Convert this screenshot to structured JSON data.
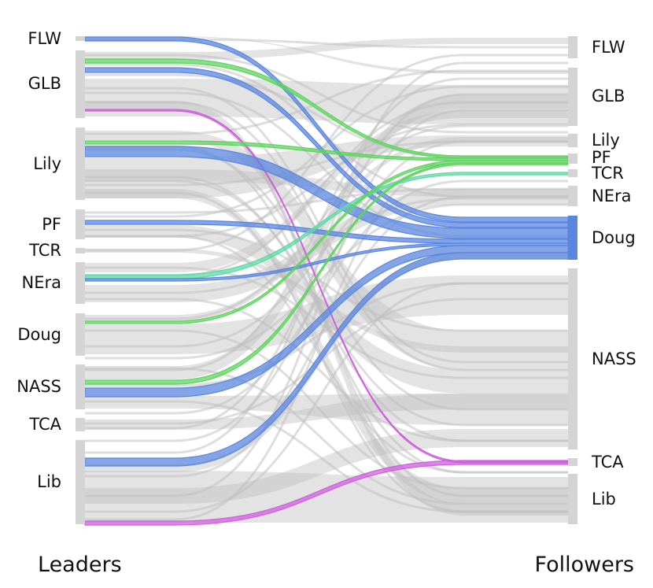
{
  "columns": {
    "left_title": "Leaders",
    "right_title": "Followers"
  },
  "colors": {
    "node": "#d4d4d4",
    "gray_link": "#bdbdbd",
    "blue": "#5b86e0",
    "green": "#5fd45f",
    "teal": "#5fd9a5",
    "magenta": "#cf5fdf",
    "doug_node": "#5b86e0"
  },
  "leaders": [
    {
      "id": "FLW",
      "label": "FLW"
    },
    {
      "id": "GLB",
      "label": "GLB"
    },
    {
      "id": "Lily",
      "label": "Lily"
    },
    {
      "id": "PF",
      "label": "PF"
    },
    {
      "id": "TCR",
      "label": "TCR"
    },
    {
      "id": "NEra",
      "label": "NEra"
    },
    {
      "id": "Doug",
      "label": "Doug"
    },
    {
      "id": "NASS",
      "label": "NASS"
    },
    {
      "id": "TCA",
      "label": "TCA"
    },
    {
      "id": "Lib",
      "label": "Lib"
    }
  ],
  "followers": [
    {
      "id": "FLW",
      "label": "FLW"
    },
    {
      "id": "GLB",
      "label": "GLB"
    },
    {
      "id": "Lily",
      "label": "Lily"
    },
    {
      "id": "PF",
      "label": "PF"
    },
    {
      "id": "TCR",
      "label": "TCR"
    },
    {
      "id": "NEra",
      "label": "NEra"
    },
    {
      "id": "Doug",
      "label": "Doug"
    },
    {
      "id": "NASS",
      "label": "NASS"
    },
    {
      "id": "TCA",
      "label": "TCA"
    },
    {
      "id": "Lib",
      "label": "Lib"
    }
  ],
  "highlight_links": [
    {
      "from": "FLW",
      "to": "Doug",
      "color": "blue"
    },
    {
      "from": "GLB",
      "to": "PF",
      "color": "green"
    },
    {
      "from": "GLB",
      "to": "Doug",
      "color": "blue"
    },
    {
      "from": "GLB",
      "to": "TCA",
      "color": "magenta"
    },
    {
      "from": "Lily",
      "to": "PF",
      "color": "green"
    },
    {
      "from": "Lily",
      "to": "Doug",
      "color": "blue"
    },
    {
      "from": "PF",
      "to": "Doug",
      "color": "blue"
    },
    {
      "from": "NEra",
      "to": "TCR",
      "color": "teal"
    },
    {
      "from": "NEra",
      "to": "Doug",
      "color": "blue"
    },
    {
      "from": "Doug",
      "to": "PF",
      "color": "green"
    },
    {
      "from": "NASS",
      "to": "PF",
      "color": "green"
    },
    {
      "from": "NASS",
      "to": "Doug",
      "color": "blue"
    },
    {
      "from": "Lib",
      "to": "Doug",
      "color": "blue"
    },
    {
      "from": "Lib",
      "to": "TCA",
      "color": "magenta"
    }
  ]
}
